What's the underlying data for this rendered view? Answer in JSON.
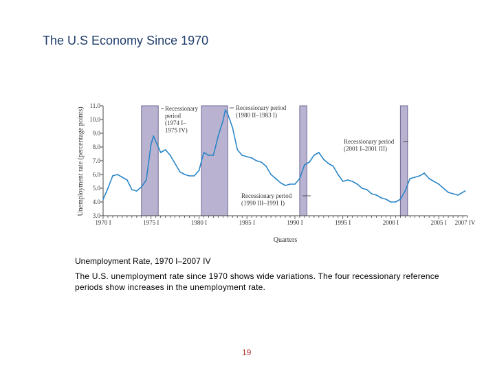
{
  "slide": {
    "title": "The U.S Economy Since 1970",
    "caption": "Unemployment Rate, 1970 I–2007 IV",
    "description": "The U.S. unemployment rate since 1970 shows wide variations. The four recessionary reference periods show increases in the unemployment rate.",
    "page_number": "19"
  },
  "colors": {
    "line": "#2a86c8",
    "recession_fill": "#b9b3d1",
    "recession_stroke": "#6e6894",
    "axis": "#444444"
  },
  "chart_data": {
    "type": "line",
    "xlabel": "Quarters",
    "ylabel": "Unemployment rate (percentage points)",
    "xlim": [
      1970.0,
      2008.0
    ],
    "ylim": [
      3.0,
      11.0
    ],
    "yticks": [
      "3.0",
      "4.0",
      "5.0",
      "6.0",
      "7.0",
      "8.0",
      "9.0",
      "10.0",
      "11.0"
    ],
    "xticks": [
      {
        "label": "1970 I",
        "value": 1970.0
      },
      {
        "label": "1975 I",
        "value": 1975.0
      },
      {
        "label": "1980 I",
        "value": 1980.0
      },
      {
        "label": "1985 I",
        "value": 1985.0
      },
      {
        "label": "1990 I",
        "value": 1990.0
      },
      {
        "label": "1995 I",
        "value": 1995.0
      },
      {
        "label": "2000 I",
        "value": 2000.0
      },
      {
        "label": "2005 I",
        "value": 2005.0
      },
      {
        "label": "2007 IV",
        "value": 2007.75
      }
    ],
    "recessions": [
      {
        "start": 1974.0,
        "end": 1975.75,
        "label": "Recessionary period (1974 I–1975 IV)"
      },
      {
        "start": 1980.25,
        "end": 1983.0,
        "label": "Recessionary period (1980 II–1983 I)"
      },
      {
        "start": 1990.5,
        "end": 1991.25,
        "label": "Recessionary period (1990 III–1991 I)"
      },
      {
        "start": 2001.0,
        "end": 2001.75,
        "label": "Recessionary period (2001 I–2001 III)"
      }
    ],
    "annotations": [
      {
        "lines": [
          "Recessionary",
          "period",
          "(1974 I–",
          "1975 IV)"
        ]
      },
      {
        "lines": [
          "Recessionary period",
          "(1980 II–1983 I)"
        ]
      },
      {
        "lines": [
          "Recessionary period",
          "(1990 III–1991 I)"
        ]
      },
      {
        "lines": [
          "Recessionary period",
          "(2001 I–2001 III)"
        ]
      }
    ],
    "series": [
      {
        "name": "Unemployment rate",
        "x": [
          1970.0,
          1970.5,
          1971.0,
          1971.5,
          1972.0,
          1972.5,
          1973.0,
          1973.5,
          1974.0,
          1974.5,
          1975.0,
          1975.25,
          1975.5,
          1976.0,
          1976.5,
          1977.0,
          1977.5,
          1978.0,
          1978.5,
          1979.0,
          1979.5,
          1980.0,
          1980.5,
          1981.0,
          1981.5,
          1982.0,
          1982.5,
          1982.75,
          1983.0,
          1983.5,
          1984.0,
          1984.5,
          1985.0,
          1985.5,
          1986.0,
          1986.5,
          1987.0,
          1987.5,
          1988.0,
          1988.5,
          1989.0,
          1989.5,
          1990.0,
          1990.5,
          1991.0,
          1991.5,
          1992.0,
          1992.5,
          1993.0,
          1993.5,
          1994.0,
          1994.5,
          1995.0,
          1995.5,
          1996.0,
          1996.5,
          1997.0,
          1997.5,
          1998.0,
          1998.5,
          1999.0,
          1999.5,
          2000.0,
          2000.5,
          2001.0,
          2001.5,
          2002.0,
          2002.5,
          2003.0,
          2003.5,
          2004.0,
          2004.5,
          2005.0,
          2005.5,
          2006.0,
          2006.5,
          2007.0,
          2007.75
        ],
        "values": [
          4.2,
          5.0,
          5.9,
          6.0,
          5.8,
          5.6,
          4.9,
          4.8,
          5.1,
          5.6,
          8.2,
          8.8,
          8.4,
          7.6,
          7.8,
          7.4,
          6.8,
          6.2,
          6.0,
          5.9,
          5.9,
          6.3,
          7.6,
          7.4,
          7.4,
          8.8,
          9.9,
          10.7,
          10.4,
          9.4,
          7.8,
          7.4,
          7.3,
          7.2,
          7.0,
          6.9,
          6.6,
          6.0,
          5.7,
          5.4,
          5.2,
          5.3,
          5.3,
          5.7,
          6.7,
          6.9,
          7.4,
          7.6,
          7.1,
          6.8,
          6.6,
          6.0,
          5.5,
          5.6,
          5.5,
          5.3,
          5.0,
          4.9,
          4.6,
          4.5,
          4.3,
          4.2,
          4.0,
          4.0,
          4.2,
          4.8,
          5.7,
          5.8,
          5.9,
          6.1,
          5.7,
          5.5,
          5.3,
          5.0,
          4.7,
          4.6,
          4.5,
          4.8
        ]
      }
    ]
  }
}
